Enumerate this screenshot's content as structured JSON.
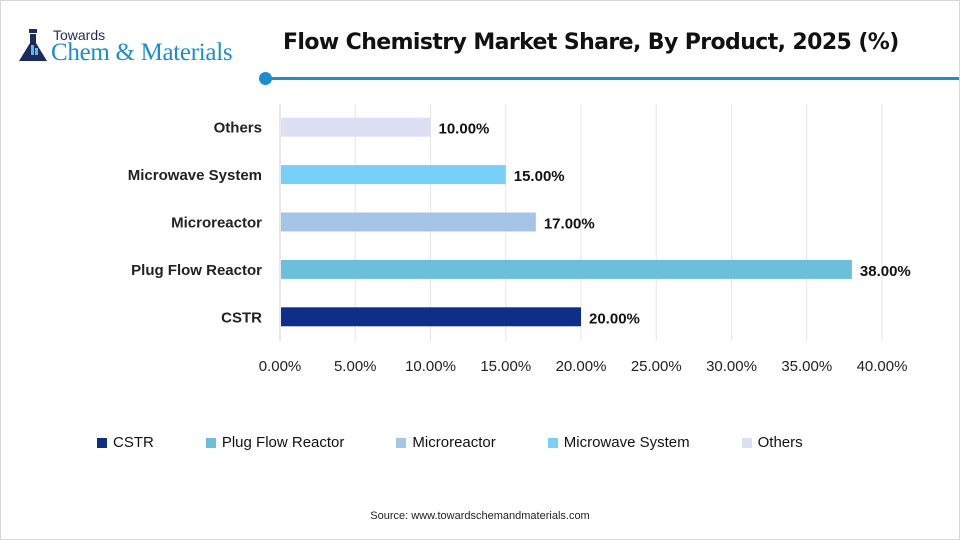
{
  "brand": {
    "line1": "Towards",
    "line2": "Chem & Materials",
    "accent": "#1a8fd0"
  },
  "chart_data": {
    "type": "bar",
    "orientation": "horizontal",
    "title": "Flow Chemistry Market Share, By Product, 2025 (%)",
    "categories": [
      "CSTR",
      "Plug Flow Reactor",
      "Microreactor",
      "Microwave System",
      "Others"
    ],
    "values": [
      20,
      38,
      17,
      15,
      10
    ],
    "data_labels": [
      "20.00%",
      "38.00%",
      "17.00%",
      "15.00%",
      "10.00%"
    ],
    "colors": [
      "#0e2f87",
      "#6cbfd8",
      "#a4c5e6",
      "#76d0f7",
      "#dddff4"
    ],
    "xlim": [
      0,
      40
    ],
    "xticks": [
      "0.00%",
      "5.00%",
      "10.00%",
      "15.00%",
      "20.00%",
      "25.00%",
      "30.00%",
      "35.00%",
      "40.00%"
    ],
    "grid": true,
    "legend": "bottom",
    "xlabel": "",
    "ylabel": ""
  },
  "source": "Source: www.towardschemandmaterials.com"
}
